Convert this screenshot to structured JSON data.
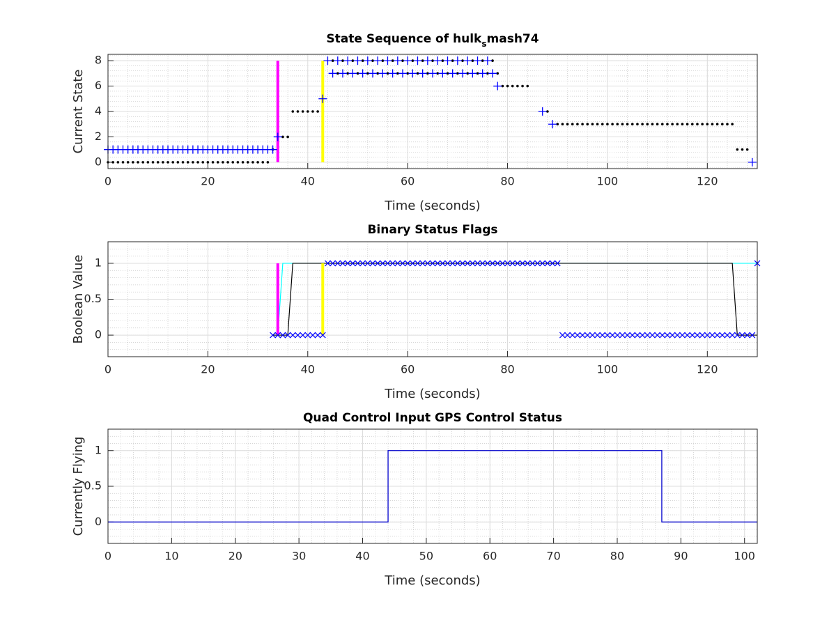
{
  "chart_data": [
    {
      "type": "line",
      "title": [
        "State Sequence of hulk",
        "s",
        "mash74"
      ],
      "xlabel": "Time (seconds)",
      "ylabel": "Current State",
      "xlim": [
        0,
        130
      ],
      "xticks": [
        0,
        20,
        40,
        60,
        80,
        100,
        120
      ],
      "ylim": [
        -0.5,
        8.5
      ],
      "yticks": [
        0,
        2,
        4,
        6,
        8
      ],
      "grid": true,
      "minor_grid": true,
      "series": [
        {
          "color": "#ff00ff",
          "marker": null,
          "linewidth": 4,
          "x": [
            34,
            34
          ],
          "y": [
            0,
            8
          ]
        },
        {
          "color": "#ffff00",
          "marker": null,
          "linewidth": 4,
          "x": [
            43,
            43
          ],
          "y": [
            0,
            8
          ]
        },
        {
          "color": "#000000",
          "marker": ".",
          "linewidth": 0,
          "x": [
            0,
            1,
            2,
            3,
            4,
            5,
            6,
            7,
            8,
            9,
            10,
            11,
            12,
            13,
            14,
            15,
            16,
            17,
            18,
            19,
            20,
            21,
            22,
            23,
            24,
            25,
            26,
            27,
            28,
            29,
            30,
            31,
            32,
            33,
            35,
            36,
            37,
            38,
            39,
            40,
            41,
            42,
            45,
            47,
            49,
            51,
            53,
            55,
            57,
            59,
            61,
            63,
            65,
            67,
            69,
            71,
            73,
            75,
            77,
            46,
            48,
            50,
            52,
            54,
            56,
            58,
            60,
            62,
            64,
            66,
            68,
            70,
            72,
            74,
            76,
            78,
            79,
            80,
            81,
            82,
            83,
            84,
            88,
            90,
            91,
            92,
            93,
            94,
            95,
            96,
            97,
            98,
            99,
            100,
            101,
            102,
            103,
            104,
            105,
            106,
            107,
            108,
            109,
            110,
            111,
            112,
            113,
            114,
            115,
            116,
            117,
            118,
            119,
            120,
            121,
            122,
            123,
            124,
            125,
            126,
            127,
            128
          ],
          "y": [
            0,
            0,
            0,
            0,
            0,
            0,
            0,
            0,
            0,
            0,
            0,
            0,
            0,
            0,
            0,
            0,
            0,
            0,
            0,
            0,
            0,
            0,
            0,
            0,
            0,
            0,
            0,
            0,
            0,
            0,
            0,
            0,
            0,
            1,
            2,
            2,
            4,
            4,
            4,
            4,
            4,
            4,
            8,
            8,
            8,
            8,
            8,
            8,
            8,
            8,
            8,
            8,
            8,
            8,
            8,
            8,
            8,
            8,
            8,
            7,
            7,
            7,
            7,
            7,
            7,
            7,
            7,
            7,
            7,
            7,
            7,
            7,
            7,
            7,
            7,
            7,
            6,
            6,
            6,
            6,
            6,
            6,
            4,
            3,
            3,
            3,
            3,
            3,
            3,
            3,
            3,
            3,
            3,
            3,
            3,
            3,
            3,
            3,
            3,
            3,
            3,
            3,
            3,
            3,
            3,
            3,
            3,
            3,
            3,
            3,
            3,
            3,
            3,
            3,
            3,
            3,
            3,
            3,
            3,
            1,
            1,
            1
          ]
        },
        {
          "color": "#0000ff",
          "marker": "+",
          "linewidth": 0,
          "x": [
            0,
            1,
            2,
            3,
            4,
            5,
            6,
            7,
            8,
            9,
            10,
            11,
            12,
            13,
            14,
            15,
            16,
            17,
            18,
            19,
            20,
            21,
            22,
            23,
            24,
            25,
            26,
            27,
            28,
            29,
            30,
            31,
            32,
            33,
            34,
            43,
            44,
            46,
            48,
            50,
            52,
            54,
            56,
            58,
            60,
            62,
            64,
            66,
            68,
            70,
            72,
            74,
            76,
            45,
            47,
            49,
            51,
            53,
            55,
            57,
            59,
            61,
            63,
            65,
            67,
            69,
            71,
            73,
            75,
            77,
            78,
            87,
            89,
            129
          ],
          "y": [
            1,
            1,
            1,
            1,
            1,
            1,
            1,
            1,
            1,
            1,
            1,
            1,
            1,
            1,
            1,
            1,
            1,
            1,
            1,
            1,
            1,
            1,
            1,
            1,
            1,
            1,
            1,
            1,
            1,
            1,
            1,
            1,
            1,
            1,
            2,
            5,
            8,
            8,
            8,
            8,
            8,
            8,
            8,
            8,
            8,
            8,
            8,
            8,
            8,
            8,
            8,
            8,
            8,
            7,
            7,
            7,
            7,
            7,
            7,
            7,
            7,
            7,
            7,
            7,
            7,
            7,
            7,
            7,
            7,
            7,
            6,
            4,
            3,
            0
          ]
        }
      ]
    },
    {
      "type": "line",
      "title": [
        "Binary Status Flags"
      ],
      "xlabel": "Time (seconds)",
      "ylabel": "Boolean Value",
      "xlim": [
        0,
        130
      ],
      "xticks": [
        0,
        20,
        40,
        60,
        80,
        100,
        120
      ],
      "ylim": [
        -0.3,
        1.3
      ],
      "yticks": [
        0,
        0.5,
        1
      ],
      "grid": true,
      "minor_grid": true,
      "series": [
        {
          "color": "#00ffff",
          "marker": null,
          "linewidth": 1.2,
          "x": [
            33,
            34,
            35,
            130
          ],
          "y": [
            0,
            0,
            1,
            1
          ]
        },
        {
          "color": "#000000",
          "marker": null,
          "linewidth": 1.2,
          "x": [
            33,
            36,
            37,
            125,
            126,
            130
          ],
          "y": [
            0,
            0,
            1,
            1,
            0,
            0
          ]
        },
        {
          "color": "#ff00ff",
          "marker": null,
          "linewidth": 4,
          "x": [
            34,
            34
          ],
          "y": [
            0,
            1
          ]
        },
        {
          "color": "#ffff00",
          "marker": null,
          "linewidth": 4,
          "x": [
            43,
            43
          ],
          "y": [
            0,
            1
          ]
        },
        {
          "color": "#0000ff",
          "marker": "x",
          "linewidth": 0,
          "x": [
            33,
            34,
            35,
            36,
            37,
            38,
            39,
            40,
            41,
            42,
            43,
            44,
            45,
            46,
            47,
            48,
            49,
            50,
            51,
            52,
            53,
            54,
            55,
            56,
            57,
            58,
            59,
            60,
            61,
            62,
            63,
            64,
            65,
            66,
            67,
            68,
            69,
            70,
            71,
            72,
            73,
            74,
            75,
            76,
            77,
            78,
            79,
            80,
            81,
            82,
            83,
            84,
            85,
            86,
            87,
            88,
            89,
            90,
            91,
            92,
            93,
            94,
            95,
            96,
            97,
            98,
            99,
            100,
            101,
            102,
            103,
            104,
            105,
            106,
            107,
            108,
            109,
            110,
            111,
            112,
            113,
            114,
            115,
            116,
            117,
            118,
            119,
            120,
            121,
            122,
            123,
            124,
            125,
            126,
            127,
            128,
            129,
            130
          ],
          "y": [
            0,
            0,
            0,
            0,
            0,
            0,
            0,
            0,
            0,
            0,
            0,
            1,
            1,
            1,
            1,
            1,
            1,
            1,
            1,
            1,
            1,
            1,
            1,
            1,
            1,
            1,
            1,
            1,
            1,
            1,
            1,
            1,
            1,
            1,
            1,
            1,
            1,
            1,
            1,
            1,
            1,
            1,
            1,
            1,
            1,
            1,
            1,
            1,
            1,
            1,
            1,
            1,
            1,
            1,
            1,
            1,
            1,
            1,
            0,
            0,
            0,
            0,
            0,
            0,
            0,
            0,
            0,
            0,
            0,
            0,
            0,
            0,
            0,
            0,
            0,
            0,
            0,
            0,
            0,
            0,
            0,
            0,
            0,
            0,
            0,
            0,
            0,
            0,
            0,
            0,
            0,
            0,
            0,
            0,
            0,
            0,
            0,
            1
          ]
        }
      ]
    },
    {
      "type": "line",
      "title": [
        "Quad Control Input GPS Control Status"
      ],
      "xlabel": "Time (seconds)",
      "ylabel": "Currently Flying",
      "xlim": [
        0,
        102
      ],
      "xticks": [
        0,
        10,
        20,
        30,
        40,
        50,
        60,
        70,
        80,
        90,
        100
      ],
      "ylim": [
        -0.3,
        1.3
      ],
      "yticks": [
        0,
        0.5,
        1
      ],
      "grid": true,
      "minor_grid": true,
      "series": [
        {
          "color": "#0000cc",
          "marker": null,
          "linewidth": 1.3,
          "x": [
            0,
            44,
            44,
            87,
            87,
            102
          ],
          "y": [
            0,
            0,
            1,
            1,
            0,
            0
          ]
        }
      ]
    }
  ]
}
